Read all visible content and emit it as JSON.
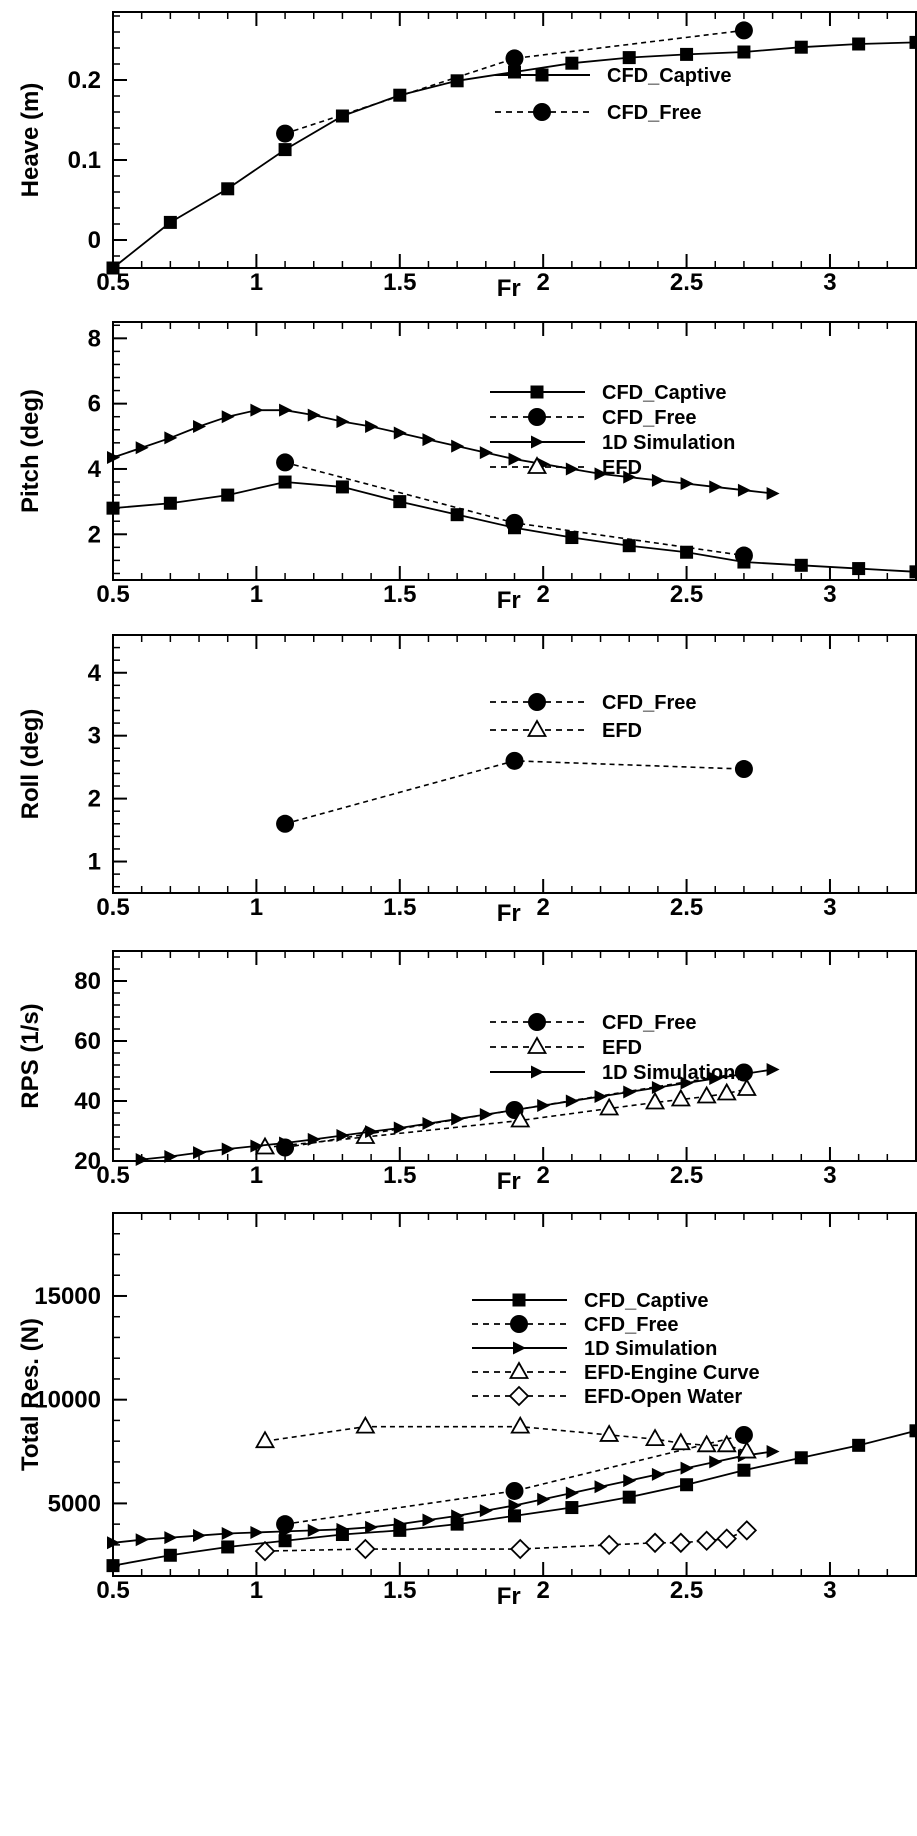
{
  "chart_data": [
    {
      "type": "line",
      "xlabel": "Fr",
      "ylabel": "Heave (m)",
      "xlim": [
        0.5,
        3.3
      ],
      "ylim": [
        -0.035,
        0.285
      ],
      "xticks": [
        0.5,
        1,
        1.5,
        2,
        2.5,
        3
      ],
      "xtick_labels": [
        "0.5",
        "1",
        "1.5",
        "2",
        "2.5",
        "3"
      ],
      "yticks": [
        0,
        0.1,
        0.2
      ],
      "ytick_labels": [
        "0",
        "0.1",
        "0.2"
      ],
      "grid": false,
      "legend": "right",
      "series": [
        {
          "name": "CFD_Captive",
          "marker": "square",
          "dash": "solid",
          "x": [
            0.5,
            0.7,
            0.9,
            1.1,
            1.3,
            1.5,
            1.7,
            1.9,
            2.1,
            2.3,
            2.5,
            2.7,
            2.9,
            3.1,
            3.3
          ],
          "y": [
            -0.035,
            0.022,
            0.064,
            0.113,
            0.155,
            0.181,
            0.199,
            0.21,
            0.221,
            0.228,
            0.232,
            0.235,
            0.241,
            0.245,
            0.247
          ]
        },
        {
          "name": "CFD_Free",
          "marker": "circle",
          "dash": "dashed",
          "x": [
            1.1,
            1.9,
            2.7
          ],
          "y": [
            0.133,
            0.227,
            0.262
          ]
        }
      ]
    },
    {
      "type": "line",
      "xlabel": "Fr",
      "ylabel": "Pitch (deg)",
      "xlim": [
        0.5,
        3.3
      ],
      "ylim": [
        0.6,
        8.5
      ],
      "xticks": [
        0.5,
        1,
        1.5,
        2,
        2.5,
        3
      ],
      "xtick_labels": [
        "0.5",
        "1",
        "1.5",
        "2",
        "2.5",
        "3"
      ],
      "yticks": [
        2,
        4,
        6,
        8
      ],
      "ytick_labels": [
        "2",
        "4",
        "6",
        "8"
      ],
      "grid": false,
      "legend": "right",
      "series": [
        {
          "name": "CFD_Captive",
          "marker": "square",
          "dash": "solid",
          "x": [
            0.5,
            0.7,
            0.9,
            1.1,
            1.3,
            1.5,
            1.7,
            1.9,
            2.1,
            2.3,
            2.5,
            2.7,
            2.9,
            3.1,
            3.3
          ],
          "y": [
            2.8,
            2.95,
            3.2,
            3.6,
            3.45,
            3.0,
            2.6,
            2.2,
            1.9,
            1.65,
            1.45,
            1.15,
            1.05,
            0.95,
            0.85
          ]
        },
        {
          "name": "CFD_Free",
          "marker": "circle",
          "dash": "dashed",
          "x": [
            1.1,
            1.9,
            2.7
          ],
          "y": [
            4.2,
            2.35,
            1.35
          ]
        },
        {
          "name": "1D Simulation",
          "marker": "triangle-right",
          "dash": "solid",
          "x": [
            0.5,
            0.6,
            0.7,
            0.8,
            0.9,
            1.0,
            1.1,
            1.2,
            1.3,
            1.4,
            1.5,
            1.6,
            1.7,
            1.8,
            1.9,
            2.0,
            2.1,
            2.2,
            2.3,
            2.4,
            2.5,
            2.6,
            2.7,
            2.8
          ],
          "y": [
            4.35,
            4.65,
            4.95,
            5.3,
            5.6,
            5.8,
            5.8,
            5.65,
            5.45,
            5.3,
            5.1,
            4.9,
            4.7,
            4.5,
            4.3,
            4.15,
            4.0,
            3.85,
            3.75,
            3.65,
            3.55,
            3.45,
            3.35,
            3.25
          ]
        },
        {
          "name": "EFD",
          "marker": "triangle-open",
          "dash": "dashed",
          "x": [],
          "y": []
        }
      ]
    },
    {
      "type": "line",
      "xlabel": "Fr",
      "ylabel": "Roll (deg)",
      "xlim": [
        0.5,
        3.3
      ],
      "ylim": [
        0.5,
        4.6
      ],
      "xticks": [
        0.5,
        1,
        1.5,
        2,
        2.5,
        3
      ],
      "xtick_labels": [
        "0.5",
        "1",
        "1.5",
        "2",
        "2.5",
        "3"
      ],
      "yticks": [
        1,
        2,
        3,
        4
      ],
      "ytick_labels": [
        "1",
        "2",
        "3",
        "4"
      ],
      "grid": false,
      "legend": "right",
      "series": [
        {
          "name": "CFD_Free",
          "marker": "circle",
          "dash": "dashed",
          "x": [
            1.1,
            1.9,
            2.7
          ],
          "y": [
            1.6,
            2.6,
            2.47
          ]
        },
        {
          "name": "EFD",
          "marker": "triangle-open",
          "dash": "dashed",
          "x": [],
          "y": []
        }
      ]
    },
    {
      "type": "line",
      "xlabel": "Fr",
      "ylabel": "RPS (1/s)",
      "xlim": [
        0.5,
        3.3
      ],
      "ylim": [
        20,
        90
      ],
      "xticks": [
        0.5,
        1,
        1.5,
        2,
        2.5,
        3
      ],
      "xtick_labels": [
        "0.5",
        "1",
        "1.5",
        "2",
        "2.5",
        "3"
      ],
      "yticks": [
        20,
        40,
        60,
        80
      ],
      "ytick_labels": [
        "20",
        "40",
        "60",
        "80"
      ],
      "grid": false,
      "legend": "right",
      "series": [
        {
          "name": "CFD_Free",
          "marker": "circle",
          "dash": "dashed",
          "x": [
            1.1,
            1.9,
            2.7
          ],
          "y": [
            24.5,
            37,
            49.5
          ]
        },
        {
          "name": "EFD",
          "marker": "triangle-open",
          "dash": "dashed",
          "x": [
            1.03,
            1.38,
            1.92,
            2.23,
            2.39,
            2.48,
            2.57,
            2.64,
            2.71
          ],
          "y": [
            24.5,
            28,
            33.5,
            37.5,
            39.5,
            40.5,
            41.5,
            42.5,
            44
          ]
        },
        {
          "name": "1D Simulation",
          "marker": "triangle-right",
          "dash": "solid",
          "x": [
            0.6,
            0.7,
            0.8,
            0.9,
            1.0,
            1.1,
            1.2,
            1.3,
            1.4,
            1.5,
            1.6,
            1.7,
            1.8,
            1.9,
            2.0,
            2.1,
            2.2,
            2.3,
            2.4,
            2.5,
            2.6,
            2.7,
            2.8
          ],
          "y": [
            20.5,
            21.5,
            22.8,
            24,
            25,
            26,
            27.2,
            28.5,
            29.8,
            31,
            32.5,
            34,
            35.5,
            37,
            38.5,
            40,
            41.5,
            43,
            44.5,
            46,
            47.5,
            49,
            50.5
          ]
        }
      ]
    },
    {
      "type": "line",
      "xlabel": "Fr",
      "ylabel": "Total Res. (N)",
      "xlim": [
        0.5,
        3.3
      ],
      "ylim": [
        1500,
        19000
      ],
      "xticks": [
        0.5,
        1,
        1.5,
        2,
        2.5,
        3
      ],
      "xtick_labels": [
        "0.5",
        "1",
        "1.5",
        "2",
        "2.5",
        "3"
      ],
      "yticks": [
        5000,
        10000,
        15000
      ],
      "ytick_labels": [
        "5000",
        "10000",
        "15000"
      ],
      "grid": false,
      "legend": "right",
      "series": [
        {
          "name": "CFD_Captive",
          "marker": "square",
          "dash": "solid",
          "x": [
            0.5,
            0.7,
            0.9,
            1.1,
            1.3,
            1.5,
            1.7,
            1.9,
            2.1,
            2.3,
            2.5,
            2.7,
            2.9,
            3.1,
            3.3
          ],
          "y": [
            2000,
            2500,
            2900,
            3200,
            3500,
            3700,
            4000,
            4400,
            4800,
            5300,
            5900,
            6600,
            7200,
            7800,
            8500
          ]
        },
        {
          "name": "CFD_Free",
          "marker": "circle",
          "dash": "dashed",
          "x": [
            1.1,
            1.9,
            2.7
          ],
          "y": [
            4000,
            5600,
            8300
          ]
        },
        {
          "name": "1D Simulation",
          "marker": "triangle-right",
          "dash": "solid",
          "x": [
            0.5,
            0.6,
            0.7,
            0.8,
            0.9,
            1.0,
            1.1,
            1.2,
            1.3,
            1.4,
            1.5,
            1.6,
            1.7,
            1.8,
            1.9,
            2.0,
            2.1,
            2.2,
            2.3,
            2.4,
            2.5,
            2.6,
            2.7,
            2.8
          ],
          "y": [
            3100,
            3250,
            3350,
            3450,
            3550,
            3600,
            3650,
            3700,
            3750,
            3850,
            4000,
            4200,
            4400,
            4650,
            4900,
            5200,
            5500,
            5800,
            6100,
            6400,
            6700,
            7000,
            7300,
            7500
          ]
        },
        {
          "name": "EFD-Engine Curve",
          "marker": "triangle-open",
          "dash": "dashed",
          "x": [
            1.03,
            1.38,
            1.92,
            2.23,
            2.39,
            2.48,
            2.57,
            2.64,
            2.71
          ],
          "y": [
            8000,
            8700,
            8700,
            8300,
            8100,
            7900,
            7800,
            7800,
            7500
          ]
        },
        {
          "name": "EFD-Open Water",
          "marker": "diamond-open",
          "dash": "dashed",
          "x": [
            1.03,
            1.38,
            1.92,
            2.23,
            2.39,
            2.48,
            2.57,
            2.64,
            2.71
          ],
          "y": [
            2700,
            2800,
            2800,
            3000,
            3100,
            3100,
            3200,
            3300,
            3700
          ]
        }
      ]
    }
  ]
}
